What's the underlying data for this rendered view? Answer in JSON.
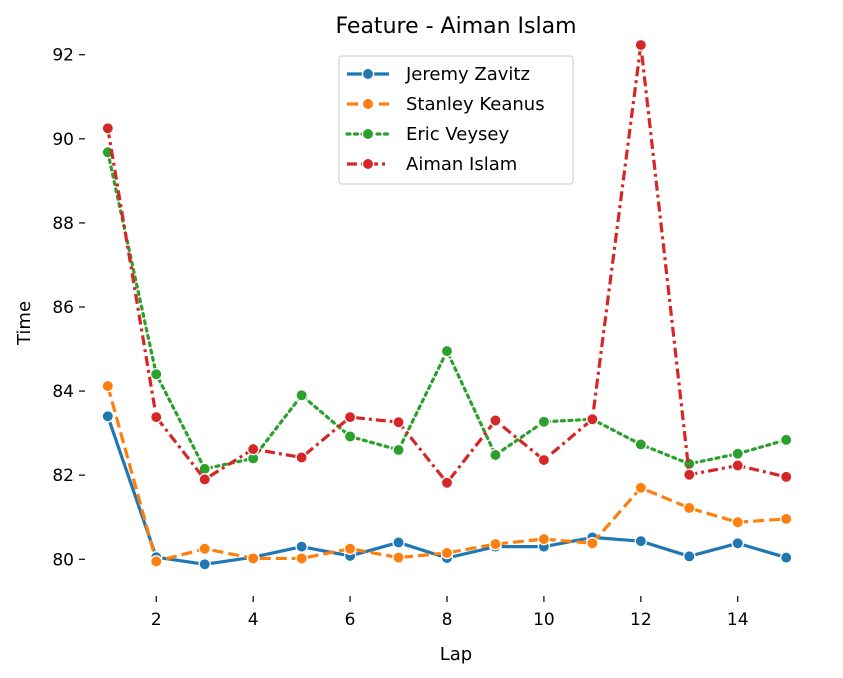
{
  "chart_data": {
    "type": "line",
    "title": "Feature - Aiman Islam",
    "xlabel": "Lap",
    "ylabel": "Time",
    "xlim": [
      0.55,
      15.45
    ],
    "ylim": [
      79.15,
      92.35
    ],
    "xticks": [
      2,
      4,
      6,
      8,
      10,
      12,
      14
    ],
    "yticks": [
      80,
      82,
      84,
      86,
      88,
      90,
      92
    ],
    "grid": false,
    "legend_position": "upper center",
    "x": [
      1,
      2,
      3,
      4,
      5,
      6,
      7,
      8,
      9,
      10,
      11,
      12,
      13,
      14,
      15
    ],
    "series": [
      {
        "name": "Jeremy Zavitz",
        "color": "#1f77b4",
        "dash": "solid",
        "values": [
          83.4,
          80.05,
          79.88,
          80.05,
          80.3,
          80.08,
          80.4,
          80.03,
          80.3,
          80.3,
          80.52,
          80.43,
          80.07,
          80.38,
          80.04
        ]
      },
      {
        "name": "Stanley Keanus",
        "color": "#ff7f0e",
        "dash": "dashed",
        "values": [
          84.12,
          79.95,
          80.25,
          80.02,
          80.02,
          80.25,
          80.04,
          80.15,
          80.36,
          80.48,
          80.38,
          81.7,
          81.22,
          80.88,
          80.96
        ]
      },
      {
        "name": "Eric Veysey",
        "color": "#2ca02c",
        "dash": "dotted",
        "values": [
          89.68,
          84.4,
          82.15,
          82.4,
          83.9,
          82.92,
          82.6,
          84.95,
          82.48,
          83.27,
          83.33,
          82.73,
          82.27,
          82.51,
          82.84
        ]
      },
      {
        "name": "Aiman Islam",
        "color": "#d62728",
        "dash": "dashdot",
        "values": [
          90.25,
          83.38,
          81.9,
          82.62,
          82.42,
          83.38,
          83.26,
          81.82,
          83.3,
          82.36,
          83.33,
          92.23,
          82.01,
          82.23,
          81.96
        ]
      }
    ]
  }
}
